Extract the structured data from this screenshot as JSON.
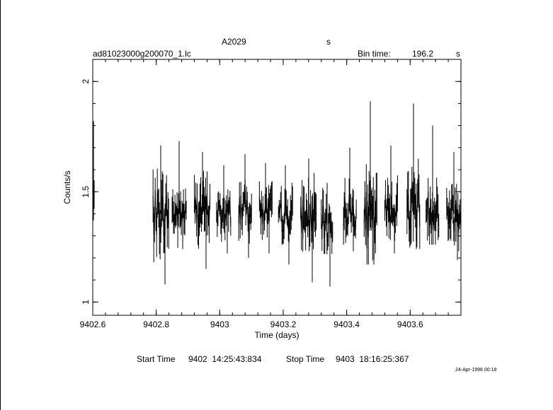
{
  "header": {
    "title": "A2029",
    "title_suffix": "s",
    "filename": "ad81023000g200070_1.lc",
    "bin_label": "Bin time:",
    "bin_value": "196.2",
    "bin_unit": "s"
  },
  "footer": {
    "start_label": "Start Time",
    "start_value": "9402  14:25:43:834",
    "stop_label": "Stop Time",
    "stop_value": "9403  18:16:25:367",
    "date_stamp": "24-Apr-1998 00:18"
  },
  "chart_data": {
    "type": "line",
    "xlabel": "Time (days)",
    "ylabel": "Counts/s",
    "xlim": [
      9402.6,
      9403.76
    ],
    "ylim": [
      0.94,
      2.1
    ],
    "x_ticks": [
      9402.6,
      9402.8,
      9403,
      9403.2,
      9403.4,
      9403.6
    ],
    "x_tick_labels": [
      "9402.6",
      "9402.8",
      "9403",
      "9403.2",
      "9403.4",
      "9403.6"
    ],
    "y_ticks": [
      1,
      1.5,
      2
    ],
    "y_tick_labels": [
      "1",
      "1.5",
      "2"
    ],
    "segments": [
      {
        "x_start": 9402.6,
        "x_end": 9402.604,
        "y_mean": 1.46,
        "y_min": 1.37,
        "y_max": 1.82
      },
      {
        "x_start": 9402.79,
        "x_end": 9402.84,
        "y_mean": 1.4,
        "y_min": 1.08,
        "y_max": 1.71
      },
      {
        "x_start": 9402.85,
        "x_end": 9402.895,
        "y_mean": 1.4,
        "y_min": 1.24,
        "y_max": 1.73
      },
      {
        "x_start": 9402.92,
        "x_end": 9402.97,
        "y_mean": 1.42,
        "y_min": 1.15,
        "y_max": 1.68
      },
      {
        "x_start": 9402.99,
        "x_end": 9403.035,
        "y_mean": 1.4,
        "y_min": 1.22,
        "y_max": 1.62
      },
      {
        "x_start": 9403.06,
        "x_end": 9403.1,
        "y_mean": 1.43,
        "y_min": 1.2,
        "y_max": 1.67
      },
      {
        "x_start": 9403.125,
        "x_end": 9403.165,
        "y_mean": 1.41,
        "y_min": 1.22,
        "y_max": 1.63
      },
      {
        "x_start": 9403.185,
        "x_end": 9403.23,
        "y_mean": 1.39,
        "y_min": 1.17,
        "y_max": 1.62
      },
      {
        "x_start": 9403.255,
        "x_end": 9403.305,
        "y_mean": 1.38,
        "y_min": 1.09,
        "y_max": 1.65
      },
      {
        "x_start": 9403.32,
        "x_end": 9403.355,
        "y_mean": 1.35,
        "y_min": 1.07,
        "y_max": 1.54
      },
      {
        "x_start": 9403.39,
        "x_end": 9403.43,
        "y_mean": 1.41,
        "y_min": 1.23,
        "y_max": 1.7
      },
      {
        "x_start": 9403.455,
        "x_end": 9403.495,
        "y_mean": 1.37,
        "y_min": 1.17,
        "y_max": 1.91
      },
      {
        "x_start": 9403.52,
        "x_end": 9403.56,
        "y_mean": 1.42,
        "y_min": 1.22,
        "y_max": 1.71
      },
      {
        "x_start": 9403.59,
        "x_end": 9403.63,
        "y_mean": 1.44,
        "y_min": 1.24,
        "y_max": 1.9
      },
      {
        "x_start": 9403.65,
        "x_end": 9403.69,
        "y_mean": 1.42,
        "y_min": 1.26,
        "y_max": 1.8
      },
      {
        "x_start": 9403.715,
        "x_end": 9403.76,
        "y_mean": 1.4,
        "y_min": 1.19,
        "y_max": 1.68
      }
    ]
  }
}
